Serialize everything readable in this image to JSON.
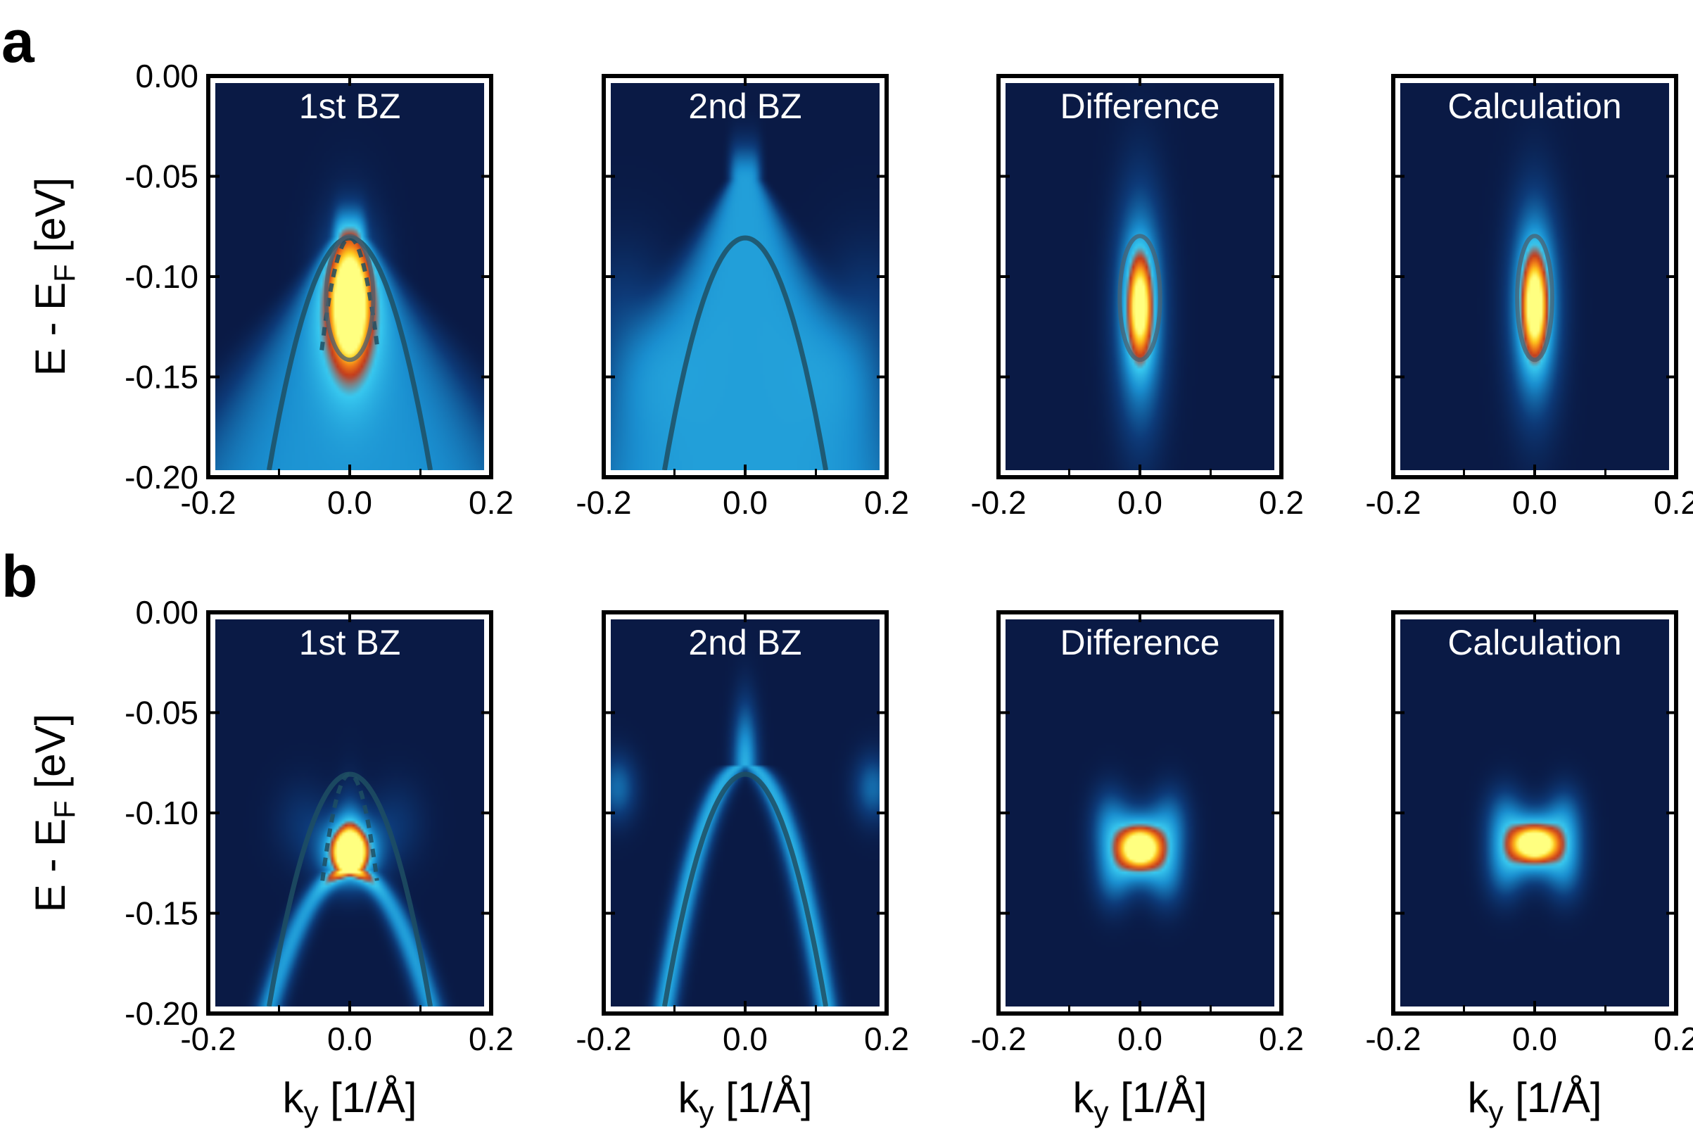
{
  "figure": {
    "row_labels": [
      "a",
      "b"
    ],
    "panel_titles": [
      "1st BZ",
      "2nd BZ",
      "Difference",
      "Calculation"
    ],
    "y_axis_label": {
      "main": "E - E",
      "sub": "F",
      "unit": " [eV]"
    },
    "x_axis_label": {
      "main": "k",
      "sub": "y",
      "unit": " [1/Å]"
    },
    "y_tick_labels": [
      "0.00",
      "-0.05",
      "-0.10",
      "-0.15",
      "-0.20"
    ],
    "x_tick_labels": [
      "-0.2",
      "0.0",
      "0.2"
    ],
    "colors": {
      "background": "#0a1a45",
      "frame": "#000000",
      "inner_frame": "#ffffff",
      "dispersion_line": "#1f4f63",
      "colormap": [
        "#0a1a45",
        "#0d3a78",
        "#1a8fd0",
        "#38c9f0",
        "#c23a1c",
        "#f07a18",
        "#ffd020",
        "#ffff80"
      ]
    }
  },
  "chart_data": [
    {
      "type": "heatmap",
      "row": "a",
      "title": "1st BZ",
      "xlabel": "k_y [1/Å]",
      "ylabel": "E - E_F [eV]",
      "xlim": [
        -0.2,
        0.2
      ],
      "ylim": [
        -0.2,
        0.0
      ],
      "xticks": [
        -0.2,
        0.0,
        0.2
      ],
      "yticks": [
        0.0,
        -0.05,
        -0.1,
        -0.15,
        -0.2
      ],
      "features": [
        {
          "kind": "band",
          "apex": [
            0.0,
            -0.08
          ],
          "edge_k": 0.2,
          "edge_E": -0.2,
          "intensity": 0.42
        },
        {
          "kind": "blob",
          "center": [
            0.0,
            -0.115
          ],
          "sigma_k": 0.032,
          "sigma_E": 0.03,
          "intensity": 0.5
        },
        {
          "kind": "blob",
          "center": [
            0.0,
            -0.115
          ],
          "sigma_k": 0.015,
          "sigma_E": 0.017,
          "intensity": 0.6
        }
      ],
      "lines": [
        {
          "kind": "dispersion",
          "apex_E": -0.08,
          "k_at_bottom": 0.12,
          "style": "solid"
        },
        {
          "kind": "dispersion",
          "apex_E": -0.08,
          "k_at_bottom": 0.06,
          "style": "dashed",
          "E_min": -0.138
        },
        {
          "kind": "ellipse",
          "center": [
            0.0,
            -0.111
          ],
          "rk": 0.035,
          "rE": 0.032,
          "style": "outline"
        }
      ]
    },
    {
      "type": "heatmap",
      "row": "a",
      "title": "2nd BZ",
      "xlabel": "k_y [1/Å]",
      "xlim": [
        -0.2,
        0.2
      ],
      "ylim": [
        -0.2,
        0.0
      ],
      "xticks": [
        -0.2,
        0.0,
        0.2
      ],
      "features": [
        {
          "kind": "band",
          "apex": [
            0.0,
            -0.05
          ],
          "edge_k": 0.2,
          "edge_E": -0.2,
          "intensity": 0.45
        },
        {
          "kind": "blob",
          "center": [
            -0.18,
            -0.13
          ],
          "sigma_k": 0.05,
          "sigma_E": 0.03,
          "intensity": 0.2
        },
        {
          "kind": "blob",
          "center": [
            0.18,
            -0.13
          ],
          "sigma_k": 0.05,
          "sigma_E": 0.03,
          "intensity": 0.2
        }
      ],
      "lines": [
        {
          "kind": "dispersion",
          "apex_E": -0.08,
          "k_at_bottom": 0.12,
          "style": "solid"
        }
      ]
    },
    {
      "type": "heatmap",
      "row": "a",
      "title": "Difference",
      "xlabel": "k_y [1/Å]",
      "xlim": [
        -0.2,
        0.2
      ],
      "ylim": [
        -0.2,
        0.0
      ],
      "xticks": [
        -0.2,
        0.0,
        0.2
      ],
      "features": [
        {
          "kind": "blob",
          "center": [
            0.0,
            -0.118
          ],
          "sigma_k": 0.026,
          "sigma_E": 0.042,
          "intensity": 0.55
        },
        {
          "kind": "blob",
          "center": [
            0.0,
            -0.115
          ],
          "sigma_k": 0.014,
          "sigma_E": 0.02,
          "intensity": 0.6
        }
      ],
      "lines": [
        {
          "kind": "ellipse",
          "center": [
            0.0,
            -0.111
          ],
          "rk": 0.03,
          "rE": 0.032,
          "style": "outline"
        }
      ]
    },
    {
      "type": "heatmap",
      "row": "a",
      "title": "Calculation",
      "xlabel": "k_y [1/Å]",
      "xlim": [
        -0.2,
        0.2
      ],
      "ylim": [
        -0.2,
        0.0
      ],
      "xticks": [
        -0.2,
        0.0,
        0.2
      ],
      "features": [
        {
          "kind": "blob",
          "center": [
            0.0,
            -0.115
          ],
          "sigma_k": 0.026,
          "sigma_E": 0.037,
          "intensity": 0.6
        },
        {
          "kind": "blob",
          "center": [
            0.0,
            -0.115
          ],
          "sigma_k": 0.014,
          "sigma_E": 0.02,
          "intensity": 0.6
        }
      ],
      "lines": [
        {
          "kind": "ellipse",
          "center": [
            0.0,
            -0.111
          ],
          "rk": 0.026,
          "rE": 0.032,
          "style": "outline"
        }
      ]
    },
    {
      "type": "heatmap",
      "row": "b",
      "title": "1st BZ",
      "xlabel": "k_y [1/Å]",
      "ylabel": "E - E_F [eV]",
      "xlim": [
        -0.2,
        0.2
      ],
      "ylim": [
        -0.2,
        0.0
      ],
      "xticks": [
        -0.2,
        0.0,
        0.2
      ],
      "yticks": [
        0.0,
        -0.05,
        -0.1,
        -0.15,
        -0.2
      ],
      "features": [
        {
          "kind": "ridge",
          "apex_E": -0.13,
          "k_at_bottom": 0.12,
          "width": 0.014,
          "intensity": 0.45
        },
        {
          "kind": "blob",
          "center": [
            0.0,
            -0.12
          ],
          "sigma_k": 0.03,
          "sigma_E": 0.012,
          "intensity": 0.75
        },
        {
          "kind": "blob",
          "center": [
            0.0,
            -0.12
          ],
          "sigma_k": 0.018,
          "sigma_E": 0.007,
          "intensity": 0.5
        },
        {
          "kind": "blob",
          "center": [
            -0.07,
            -0.105
          ],
          "sigma_k": 0.03,
          "sigma_E": 0.015,
          "intensity": 0.12
        },
        {
          "kind": "blob",
          "center": [
            0.07,
            -0.105
          ],
          "sigma_k": 0.03,
          "sigma_E": 0.015,
          "intensity": 0.12
        }
      ],
      "lines": [
        {
          "kind": "dispersion",
          "apex_E": -0.08,
          "k_at_bottom": 0.12,
          "style": "solid"
        },
        {
          "kind": "dispersion",
          "apex_E": -0.08,
          "k_at_bottom": 0.06,
          "style": "dashed",
          "E_min": -0.135
        }
      ]
    },
    {
      "type": "heatmap",
      "row": "b",
      "title": "2nd BZ",
      "xlabel": "k_y [1/Å]",
      "xlim": [
        -0.2,
        0.2
      ],
      "ylim": [
        -0.2,
        0.0
      ],
      "xticks": [
        -0.2,
        0.0,
        0.2
      ],
      "features": [
        {
          "kind": "ridge",
          "apex_E": -0.075,
          "k_at_bottom": 0.12,
          "width": 0.013,
          "intensity": 0.5
        },
        {
          "kind": "blob",
          "center": [
            -0.19,
            -0.087
          ],
          "sigma_k": 0.02,
          "sigma_E": 0.012,
          "intensity": 0.3
        },
        {
          "kind": "blob",
          "center": [
            0.19,
            -0.087
          ],
          "sigma_k": 0.02,
          "sigma_E": 0.012,
          "intensity": 0.3
        }
      ],
      "lines": [
        {
          "kind": "dispersion",
          "apex_E": -0.08,
          "k_at_bottom": 0.12,
          "style": "solid"
        }
      ]
    },
    {
      "type": "heatmap",
      "row": "b",
      "title": "Difference",
      "xlabel": "k_y [1/Å]",
      "xlim": [
        -0.2,
        0.2
      ],
      "ylim": [
        -0.2,
        0.0
      ],
      "xticks": [
        -0.2,
        0.0,
        0.2
      ],
      "features": [
        {
          "kind": "blob",
          "center": [
            0.0,
            -0.118
          ],
          "sigma_k": 0.03,
          "sigma_E": 0.012,
          "intensity": 0.75
        },
        {
          "kind": "blob",
          "center": [
            0.0,
            -0.118
          ],
          "sigma_k": 0.018,
          "sigma_E": 0.007,
          "intensity": 0.5
        },
        {
          "kind": "blob",
          "center": [
            -0.045,
            -0.105
          ],
          "sigma_k": 0.02,
          "sigma_E": 0.013,
          "intensity": 0.3
        },
        {
          "kind": "blob",
          "center": [
            0.045,
            -0.105
          ],
          "sigma_k": 0.02,
          "sigma_E": 0.013,
          "intensity": 0.3
        },
        {
          "kind": "blob",
          "center": [
            -0.04,
            -0.133
          ],
          "sigma_k": 0.02,
          "sigma_E": 0.012,
          "intensity": 0.28
        },
        {
          "kind": "blob",
          "center": [
            0.04,
            -0.133
          ],
          "sigma_k": 0.02,
          "sigma_E": 0.012,
          "intensity": 0.28
        }
      ],
      "lines": []
    },
    {
      "type": "heatmap",
      "row": "b",
      "title": "Calculation",
      "xlabel": "k_y [1/Å]",
      "xlim": [
        -0.2,
        0.2
      ],
      "ylim": [
        -0.2,
        0.0
      ],
      "xticks": [
        -0.2,
        0.0,
        0.2
      ],
      "features": [
        {
          "kind": "blob",
          "center": [
            0.0,
            -0.116
          ],
          "sigma_k": 0.032,
          "sigma_E": 0.011,
          "intensity": 0.75
        },
        {
          "kind": "blob",
          "center": [
            0.0,
            -0.116
          ],
          "sigma_k": 0.02,
          "sigma_E": 0.006,
          "intensity": 0.5
        },
        {
          "kind": "blob",
          "center": [
            -0.045,
            -0.103
          ],
          "sigma_k": 0.02,
          "sigma_E": 0.012,
          "intensity": 0.3
        },
        {
          "kind": "blob",
          "center": [
            0.045,
            -0.103
          ],
          "sigma_k": 0.02,
          "sigma_E": 0.012,
          "intensity": 0.3
        },
        {
          "kind": "blob",
          "center": [
            -0.045,
            -0.129
          ],
          "sigma_k": 0.02,
          "sigma_E": 0.012,
          "intensity": 0.3
        },
        {
          "kind": "blob",
          "center": [
            0.045,
            -0.129
          ],
          "sigma_k": 0.02,
          "sigma_E": 0.012,
          "intensity": 0.3
        }
      ],
      "lines": []
    }
  ]
}
